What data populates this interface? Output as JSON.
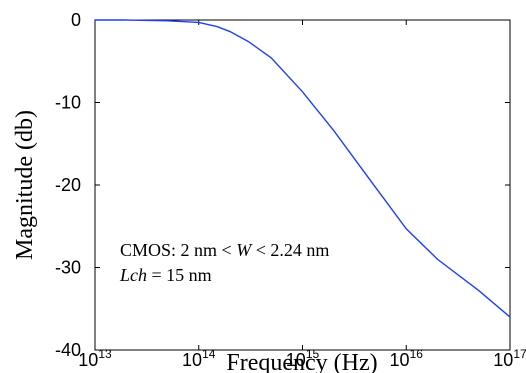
{
  "chart_data": {
    "type": "line",
    "xlabel": "Frequency (Hz)",
    "ylabel": "Magnitude (db)",
    "x_scale": "log",
    "xlim": [
      10000000000000.0,
      1e+17
    ],
    "ylim": [
      -40,
      0
    ],
    "x_ticks": [
      {
        "base": "10",
        "exp": "13",
        "value": 10000000000000.0
      },
      {
        "base": "10",
        "exp": "14",
        "value": 100000000000000.0
      },
      {
        "base": "10",
        "exp": "15",
        "value": 1000000000000000.0
      },
      {
        "base": "10",
        "exp": "16",
        "value": 1e+16
      },
      {
        "base": "10",
        "exp": "17",
        "value": 1e+17
      }
    ],
    "y_ticks": [
      "0",
      "-10",
      "-20",
      "-30",
      "-40"
    ],
    "y_tick_values": [
      0,
      -10,
      -20,
      -30,
      -40
    ],
    "grid": false,
    "series": [
      {
        "color": "#1f3fff",
        "points": [
          [
            10000000000000.0,
            0
          ],
          [
            20000000000000.0,
            0
          ],
          [
            50000000000000.0,
            -0.1
          ],
          [
            100000000000000.0,
            -0.3
          ],
          [
            150000000000000.0,
            -0.8
          ],
          [
            200000000000000.0,
            -1.4
          ],
          [
            300000000000000.0,
            -2.6
          ],
          [
            500000000000000.0,
            -4.6
          ],
          [
            1000000000000000.0,
            -8.7
          ],
          [
            2000000000000000.0,
            -13.4
          ],
          [
            5000000000000000.0,
            -20.2
          ],
          [
            1e+16,
            -25.3
          ],
          [
            2e+16,
            -29.0
          ],
          [
            5e+16,
            -32.8
          ],
          [
            1e+17,
            -36.0
          ]
        ]
      }
    ],
    "annotation": {
      "line1_prefix": "CMOS: 2 nm < ",
      "line1_var": "W",
      "line1_suffix": " < 2.24 nm",
      "line2_var": "Lch",
      "line2_suffix": " = 15 nm"
    }
  }
}
